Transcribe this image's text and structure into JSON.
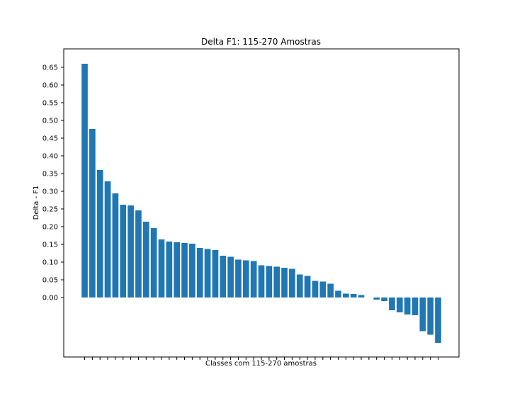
{
  "chart_data": {
    "type": "bar",
    "title": "Delta F1: 115-270 Amostras",
    "xlabel": "Classes com 115-270 amostras",
    "ylabel": "Delta - F1",
    "yticks": [
      0.0,
      0.05,
      0.1,
      0.15,
      0.2,
      0.25,
      0.3,
      0.35,
      0.4,
      0.45,
      0.5,
      0.55,
      0.6,
      0.65
    ],
    "ytick_labels": [
      "0.00",
      "0.05",
      "0.10",
      "0.15",
      "0.20",
      "0.25",
      "0.30",
      "0.35",
      "0.40",
      "0.45",
      "0.50",
      "0.55",
      "0.60",
      "0.65"
    ],
    "ylim": [
      -0.168,
      0.702
    ],
    "bar_color": "#1f77b4",
    "values": [
      0.66,
      0.476,
      0.36,
      0.328,
      0.294,
      0.262,
      0.26,
      0.246,
      0.214,
      0.196,
      0.164,
      0.158,
      0.156,
      0.154,
      0.152,
      0.14,
      0.137,
      0.134,
      0.118,
      0.115,
      0.107,
      0.105,
      0.103,
      0.091,
      0.089,
      0.087,
      0.084,
      0.081,
      0.065,
      0.061,
      0.047,
      0.045,
      0.039,
      0.019,
      0.011,
      0.01,
      0.007,
      0.0,
      -0.006,
      -0.01,
      -0.036,
      -0.042,
      -0.048,
      -0.05,
      -0.095,
      -0.105,
      -0.128
    ]
  }
}
